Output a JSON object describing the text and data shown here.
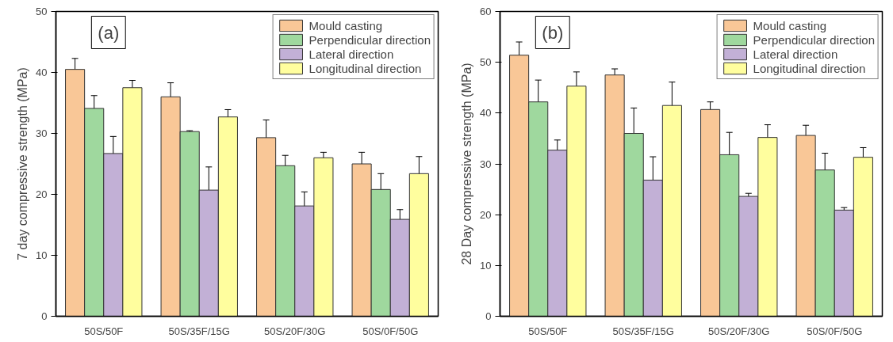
{
  "chart_data": [
    {
      "type": "bar",
      "ylabel": "7 day compressive strength (MPa)",
      "annotations": [
        "(a)"
      ],
      "categories": [
        "50S/50F",
        "50S/35F/15G",
        "50S/20F/30G",
        "50S/0F/50G"
      ],
      "ylim": [
        0,
        50
      ],
      "yticks": [
        0,
        10,
        20,
        30,
        40,
        50
      ],
      "legend": "top right",
      "grid": false,
      "series": [
        {
          "name": "Mould casting",
          "color": "#f9c797",
          "values": [
            40.5,
            36,
            29.3,
            25
          ],
          "errors": [
            1.8,
            2.3,
            2.9,
            1.9
          ]
        },
        {
          "name": "Perpendicular direction",
          "color": "#9fd89e",
          "values": [
            34.1,
            30.3,
            24.7,
            20.8
          ],
          "errors": [
            2.1,
            0.15,
            1.7,
            2.6
          ]
        },
        {
          "name": "Lateral direction",
          "color": "#c2b0d6",
          "values": [
            26.7,
            20.7,
            18.1,
            15.9
          ],
          "errors": [
            2.8,
            3.8,
            2.3,
            1.6
          ]
        },
        {
          "name": "Longitudinal direction",
          "color": "#fffe9e",
          "values": [
            37.5,
            32.7,
            26,
            23.4
          ],
          "errors": [
            1.2,
            1.2,
            0.9,
            2.8
          ]
        }
      ]
    },
    {
      "type": "bar",
      "ylabel": "28 Day compressive strength (MPa)",
      "annotations": [
        "(b)"
      ],
      "categories": [
        "50S/50F",
        "50S/35F/15G",
        "50S/20F/30G",
        "50S/0F/50G"
      ],
      "ylim": [
        0,
        60
      ],
      "yticks": [
        0,
        10,
        20,
        30,
        40,
        50,
        60
      ],
      "legend": "top right",
      "grid": false,
      "series": [
        {
          "name": "Mould casting",
          "color": "#f9c797",
          "values": [
            51.4,
            47.5,
            40.7,
            35.6
          ],
          "errors": [
            2.6,
            1.2,
            1.5,
            2
          ]
        },
        {
          "name": "Perpendicular direction",
          "color": "#9fd89e",
          "values": [
            42.2,
            36,
            31.8,
            28.8
          ],
          "errors": [
            4.3,
            5,
            4.4,
            3.3
          ]
        },
        {
          "name": "Lateral direction",
          "color": "#c2b0d6",
          "values": [
            32.7,
            26.8,
            23.6,
            20.9
          ],
          "errors": [
            2,
            4.6,
            0.6,
            0.5
          ]
        },
        {
          "name": "Longitudinal direction",
          "color": "#fffe9e",
          "values": [
            45.3,
            41.5,
            35.2,
            31.3
          ],
          "errors": [
            2.8,
            4.6,
            2.5,
            1.9
          ]
        }
      ]
    }
  ]
}
